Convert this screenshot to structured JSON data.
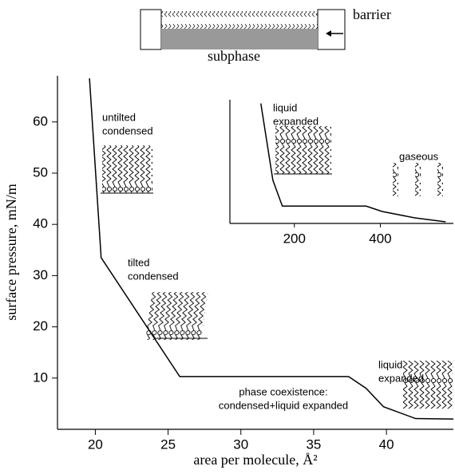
{
  "diagram": {
    "labels": [
      "barrier",
      "subphase"
    ]
  },
  "chart_data": [
    {
      "type": "line",
      "xlabel": "area per molecule, Å²",
      "ylabel": "surface pressure, mN/m",
      "x": [
        19.6,
        20.4,
        25.8,
        37.4,
        38.6,
        39.8,
        42,
        44.6
      ],
      "series": [
        {
          "color": "#000000",
          "values": [
            68.5,
            33.5,
            10.3,
            10.3,
            8,
            4.4,
            2.1,
            2
          ]
        }
      ],
      "xlim": [
        17.4,
        44.6
      ],
      "ylim": [
        0,
        69
      ],
      "xticks": [
        20,
        25,
        30,
        35,
        40
      ],
      "yticks": [
        10,
        20,
        30,
        40,
        50,
        60
      ],
      "annotations": [
        [
          "untilted",
          "condensed"
        ],
        [
          "tilted",
          "condensed"
        ],
        [
          "phase coexistence:",
          "condensed+liquid expanded"
        ],
        [
          "liquid",
          "expanded"
        ]
      ]
    },
    {
      "type": "line",
      "x": [
        122,
        150,
        172,
        367,
        404,
        480,
        552
      ],
      "series": [
        {
          "color": "#000000",
          "values": [
            9.7,
            3.5,
            1.4,
            1.4,
            0.97,
            0.45,
            0.13
          ]
        }
      ],
      "xlim": [
        50,
        570
      ],
      "ylim": [
        0,
        10
      ],
      "xticks": [
        200,
        400
      ],
      "annotations": [
        [
          "liquid",
          "expanded"
        ],
        [
          "gaseous"
        ]
      ]
    }
  ]
}
